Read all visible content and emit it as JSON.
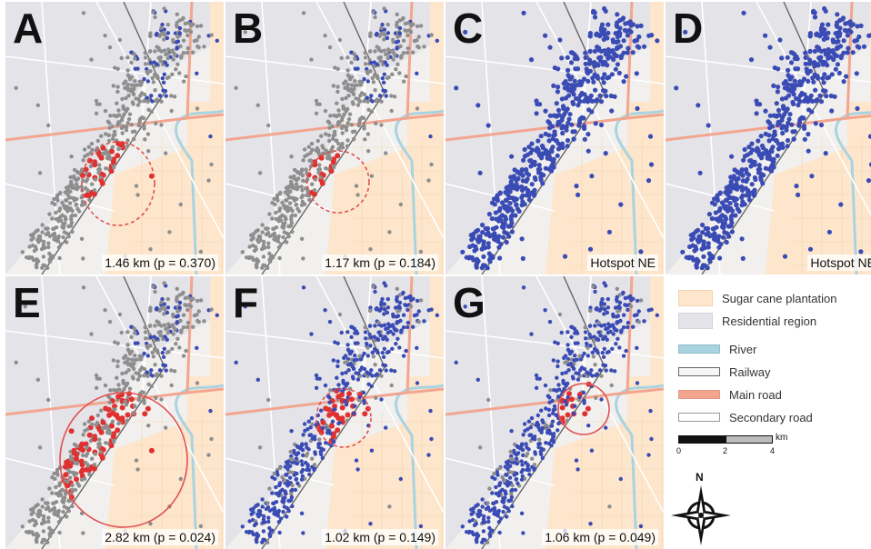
{
  "panels": [
    {
      "letter": "A",
      "caption": "1.46 km (p = 0.370)",
      "mode": "grey-mix",
      "cluster": {
        "radius_km": 1.46,
        "p": 0.37,
        "significant": false
      }
    },
    {
      "letter": "B",
      "caption": "1.17 km (p = 0.184)",
      "mode": "grey-mix",
      "cluster": {
        "radius_km": 1.17,
        "p": 0.184,
        "significant": false
      }
    },
    {
      "letter": "C",
      "caption": "Hotspot NE",
      "mode": "all-blue",
      "cluster": null
    },
    {
      "letter": "D",
      "caption": "Hotspot NE",
      "mode": "all-blue",
      "cluster": null
    },
    {
      "letter": "E",
      "caption": "2.82 km (p = 0.024)",
      "mode": "grey-mix",
      "cluster": {
        "radius_km": 2.82,
        "p": 0.024,
        "significant": true
      }
    },
    {
      "letter": "F",
      "caption": "1.02 km (p = 0.149)",
      "mode": "blue-mix",
      "cluster": {
        "radius_km": 1.02,
        "p": 0.149,
        "significant": false
      }
    },
    {
      "letter": "G",
      "caption": "1.06 km (p = 0.049)",
      "mode": "blue-mix",
      "cluster": {
        "radius_km": 1.06,
        "p": 0.049,
        "significant": true
      }
    }
  ],
  "legend": {
    "sugar_cane": "Sugar cane plantation",
    "residential": "Residential region",
    "river": "River",
    "railway": "Railway",
    "main_road": "Main road",
    "secondary_road": "Secondary road",
    "scale_ticks": [
      "0",
      "2",
      "4"
    ],
    "scale_unit": "km",
    "north": "N"
  },
  "colors": {
    "sugar_cane": "#fde6cc",
    "residential": "#e4e3e8",
    "background": "#f1f0ee",
    "river": "#a9d3e0",
    "main_road": "#f2a58f",
    "railway": "#666666",
    "point_grey": "#8e8e8e",
    "point_blue": "#3a4bb4",
    "point_red": "#e03030",
    "cluster_circle": "#e05050"
  }
}
